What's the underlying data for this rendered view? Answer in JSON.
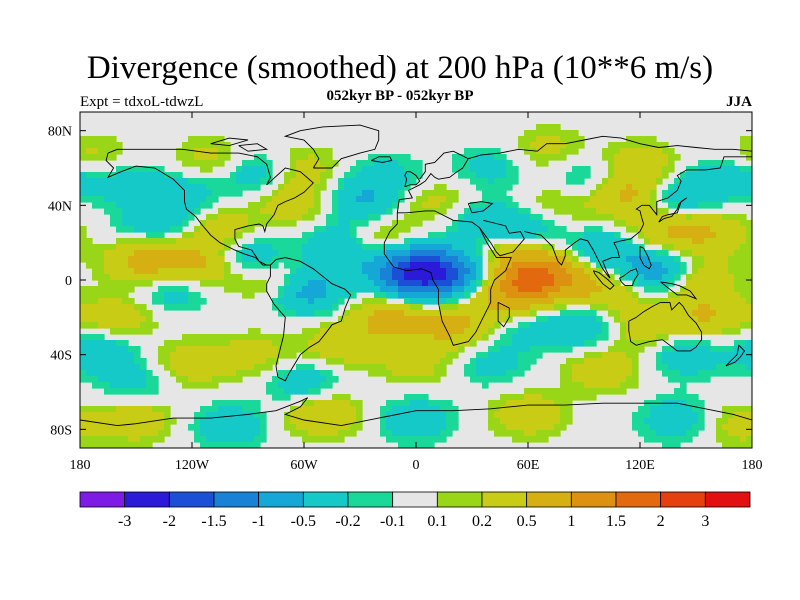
{
  "title": "Divergence (smoothed) at 200 hPa (10**6 m/s)",
  "subtitle": "052kyr BP - 052kyr BP",
  "experiment": "Expt = tdxoL-tdwzL",
  "season": "JJA",
  "lat_ticks": [
    "80N",
    "40N",
    "0",
    "40S",
    "80S"
  ],
  "lat_values": [
    80,
    40,
    0,
    -40,
    -80
  ],
  "lon_ticks": [
    "180",
    "120W",
    "60W",
    "0",
    "60E",
    "120E",
    "180"
  ],
  "lon_values": [
    -180,
    -120,
    -60,
    0,
    60,
    120,
    180
  ],
  "colorbar": {
    "labels": [
      "-3",
      "-2",
      "-1.5",
      "-1",
      "-0.5",
      "-0.2",
      "-0.1",
      "0.1",
      "0.2",
      "0.5",
      "1",
      "1.5",
      "2",
      "3"
    ],
    "colors": [
      "#7e1ce6",
      "#2b1ad8",
      "#1a4fd6",
      "#1a82d6",
      "#15a8d6",
      "#15c9c9",
      "#1ad89a",
      "#e6e6e6",
      "#9ad618",
      "#c8cc15",
      "#d6b012",
      "#dc9110",
      "#e2690d",
      "#e64010",
      "#e21010"
    ]
  },
  "chart_data": {
    "type": "heatmap",
    "variable": "Divergence (smoothed) at 200 hPa",
    "units": "10**6 m/s",
    "projection": "cylindrical-equidistant",
    "lon_range": [
      -180,
      180
    ],
    "lat_range": [
      -90,
      90
    ],
    "levels": [
      -3,
      -2,
      -1.5,
      -1,
      -0.5,
      -0.2,
      -0.1,
      0.1,
      0.2,
      0.5,
      1,
      1.5,
      2,
      3
    ],
    "blobs": [
      {
        "lon": -85,
        "lat": 57,
        "v": -0.4
      },
      {
        "lon": -60,
        "lat": 60,
        "v": 0.3
      },
      {
        "lon": -65,
        "lat": 42,
        "v": 0.4
      },
      {
        "lon": -125,
        "lat": 45,
        "v": -0.4
      },
      {
        "lon": -155,
        "lat": 52,
        "v": -0.3
      },
      {
        "lon": -175,
        "lat": 66,
        "v": 0.3
      },
      {
        "lon": -110,
        "lat": 65,
        "v": 0.3
      },
      {
        "lon": -140,
        "lat": 30,
        "v": -0.4
      },
      {
        "lon": -105,
        "lat": 28,
        "v": 0.4
      },
      {
        "lon": -145,
        "lat": 10,
        "v": 0.7
      },
      {
        "lon": -115,
        "lat": 8,
        "v": 0.6
      },
      {
        "lon": -130,
        "lat": -5,
        "v": -0.4
      },
      {
        "lon": -90,
        "lat": 12,
        "v": -0.5
      },
      {
        "lon": -78,
        "lat": 0,
        "v": 0.4
      },
      {
        "lon": -58,
        "lat": -6,
        "v": -0.7
      },
      {
        "lon": -40,
        "lat": 18,
        "v": -0.5
      },
      {
        "lon": -30,
        "lat": 42,
        "v": -0.5
      },
      {
        "lon": -15,
        "lat": 55,
        "v": -0.3
      },
      {
        "lon": -20,
        "lat": 22,
        "v": 0.4
      },
      {
        "lon": -5,
        "lat": 5,
        "v": -1.2
      },
      {
        "lon": 8,
        "lat": 3,
        "v": -1.4
      },
      {
        "lon": 25,
        "lat": 5,
        "v": -0.6
      },
      {
        "lon": -15,
        "lat": -20,
        "v": 0.6
      },
      {
        "lon": -40,
        "lat": -35,
        "v": 0.4
      },
      {
        "lon": 20,
        "lat": -25,
        "v": 0.6
      },
      {
        "lon": -160,
        "lat": -20,
        "v": 0.4
      },
      {
        "lon": -170,
        "lat": -38,
        "v": -0.4
      },
      {
        "lon": -120,
        "lat": -45,
        "v": 0.4
      },
      {
        "lon": -150,
        "lat": -55,
        "v": -0.3
      },
      {
        "lon": -85,
        "lat": -40,
        "v": 0.3
      },
      {
        "lon": -60,
        "lat": -55,
        "v": -0.4
      },
      {
        "lon": 10,
        "lat": 42,
        "v": 0.3
      },
      {
        "lon": 35,
        "lat": 30,
        "v": -0.4
      },
      {
        "lon": 45,
        "lat": 15,
        "v": 0.4
      },
      {
        "lon": 50,
        "lat": -10,
        "v": 0.6
      },
      {
        "lon": 70,
        "lat": 3,
        "v": 1.0
      },
      {
        "lon": 58,
        "lat": 0,
        "v": 0.8
      },
      {
        "lon": 60,
        "lat": 28,
        "v": -0.4
      },
      {
        "lon": 75,
        "lat": 40,
        "v": 0.3
      },
      {
        "lon": 90,
        "lat": 55,
        "v": -0.3
      },
      {
        "lon": 40,
        "lat": 60,
        "v": -0.3
      },
      {
        "lon": 70,
        "lat": 70,
        "v": 0.3
      },
      {
        "lon": 120,
        "lat": 62,
        "v": 0.4
      },
      {
        "lon": 115,
        "lat": 45,
        "v": 0.6
      },
      {
        "lon": 140,
        "lat": 45,
        "v": -0.5
      },
      {
        "lon": 160,
        "lat": 25,
        "v": 0.4
      },
      {
        "lon": 170,
        "lat": 55,
        "v": -0.4
      },
      {
        "lon": 135,
        "lat": 25,
        "v": 0.5
      },
      {
        "lon": 100,
        "lat": 15,
        "v": -0.5
      },
      {
        "lon": 130,
        "lat": 5,
        "v": -0.8
      },
      {
        "lon": 150,
        "lat": 0,
        "v": 0.5
      },
      {
        "lon": 100,
        "lat": -5,
        "v": 0.5
      },
      {
        "lon": 90,
        "lat": -25,
        "v": -0.5
      },
      {
        "lon": 60,
        "lat": -25,
        "v": -0.3
      },
      {
        "lon": 120,
        "lat": -25,
        "v": 0.4
      },
      {
        "lon": 155,
        "lat": -20,
        "v": 0.5
      },
      {
        "lon": 145,
        "lat": -40,
        "v": -0.4
      },
      {
        "lon": 100,
        "lat": -48,
        "v": 0.4
      },
      {
        "lon": 40,
        "lat": -45,
        "v": -0.3
      },
      {
        "lon": 0,
        "lat": -45,
        "v": 0.3
      },
      {
        "lon": -150,
        "lat": -75,
        "v": 0.4
      },
      {
        "lon": -100,
        "lat": -78,
        "v": -0.4
      },
      {
        "lon": -50,
        "lat": -72,
        "v": 0.5
      },
      {
        "lon": 0,
        "lat": -75,
        "v": -0.4
      },
      {
        "lon": 60,
        "lat": -72,
        "v": 0.4
      },
      {
        "lon": 140,
        "lat": -75,
        "v": -0.4
      },
      {
        "lon": 170,
        "lat": -78,
        "v": 0.3
      }
    ]
  }
}
